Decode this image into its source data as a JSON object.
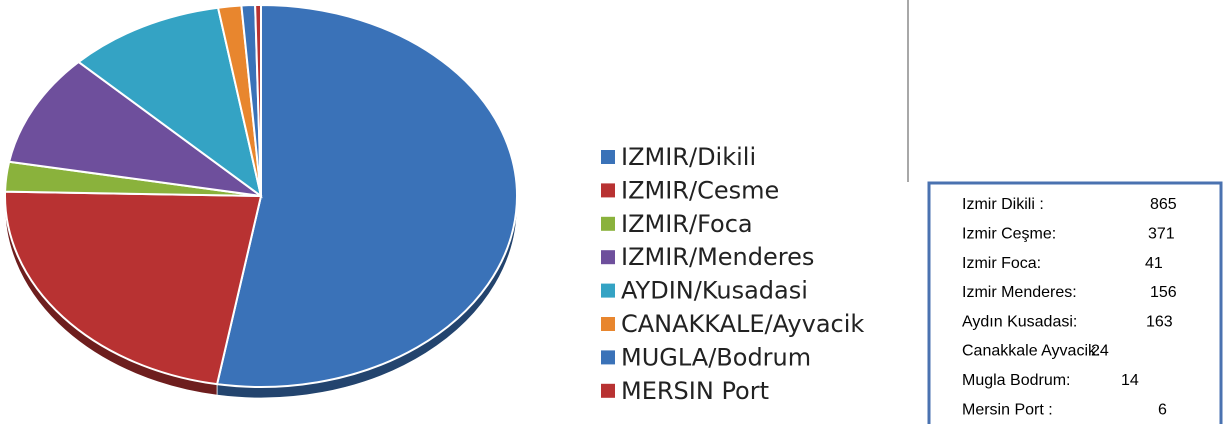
{
  "chart_data": {
    "type": "pie",
    "categories": [
      "IZMIR/Dikili",
      "IZMIR/Cesme",
      "IZMIR/Foca",
      "IZMIR/Menderes",
      "AYDIN/Kusadasi",
      "CANAKKALE/Ayvacik",
      "MUGLA/Bodrum",
      "MERSIN Port"
    ],
    "values": [
      865,
      371,
      41,
      156,
      163,
      24,
      14,
      6
    ],
    "colors": [
      "#3a72b8",
      "#b83232",
      "#8ab23c",
      "#6e4f9c",
      "#34a3c4",
      "#e8862e",
      "#3a72b8",
      "#b83232"
    ]
  },
  "value_box": {
    "labels": [
      "Izmir Dikili :",
      "Izmir Ceşme:",
      "Izmir Foca:",
      "Izmir Menderes:",
      "Aydın Kusadasi:",
      "Canakkale Ayvacik:",
      "Mugla Bodrum:",
      "Mersin Port :"
    ]
  }
}
